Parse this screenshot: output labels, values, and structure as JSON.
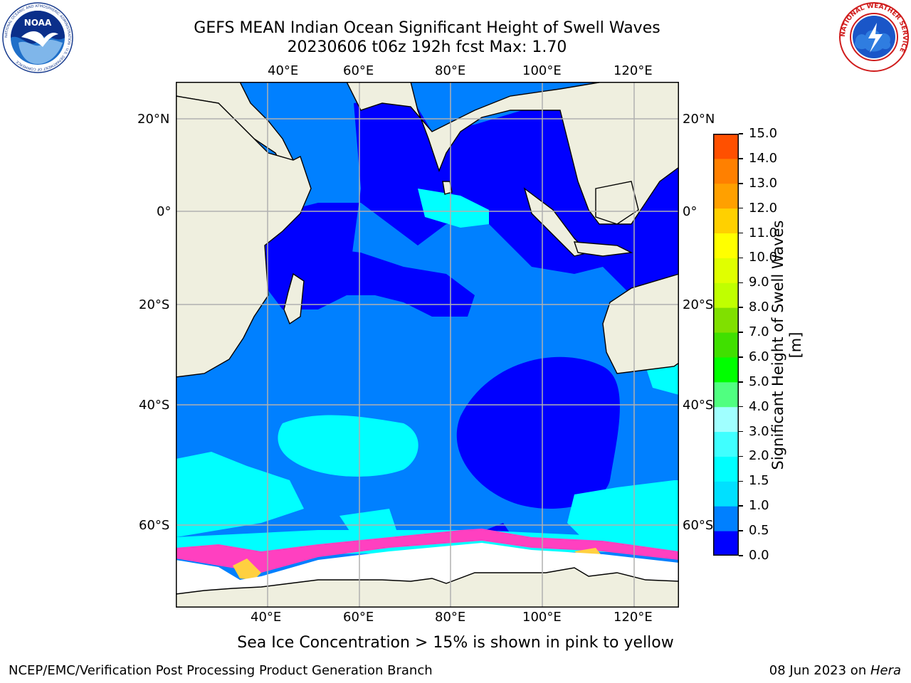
{
  "header": {
    "title_line1": "GEFS MEAN Indian Ocean Significant Height of Swell Waves",
    "title_line2": "20230606 t06z 192h fcst   Max: 1.70"
  },
  "logos": {
    "noaa_text": "NOAA",
    "noaa_ring_text": "NATIONAL OCEANIC AND ATMOSPHERIC ADMINISTRATION · U.S. DEPARTMENT OF COMMERCE",
    "nws_ring_text": "NATIONAL WEATHER SERVICE"
  },
  "map": {
    "lon_ticks": [
      "40°E",
      "60°E",
      "80°E",
      "100°E",
      "120°E"
    ],
    "lat_ticks": [
      "20°N",
      "0°",
      "20°S",
      "40°S",
      "60°S"
    ]
  },
  "colorbar": {
    "label": "Significant Height of Swell Waves [m]",
    "ticks": [
      "0.0",
      "0.5",
      "1.0",
      "1.5",
      "2.0",
      "3.0",
      "4.0",
      "5.0",
      "6.0",
      "7.0",
      "8.0",
      "9.0",
      "10.0",
      "11.0",
      "12.0",
      "13.0",
      "14.0",
      "15.0"
    ],
    "colors": [
      "#0000ff",
      "#0080ff",
      "#00e0ff",
      "#00ffff",
      "#40ffff",
      "#a0ffff",
      "#50ff80",
      "#00ff00",
      "#40e000",
      "#80e000",
      "#c0ff00",
      "#e0ff00",
      "#ffff00",
      "#ffd000",
      "#ffa000",
      "#ff8000",
      "#ff5000",
      "#ff2000",
      "#ff0000"
    ]
  },
  "caption": "Sea Ice Concentration > 15% is shown in pink to yellow",
  "footer": {
    "left": "NCEP/EMC/Verification Post Processing Product Generation Branch",
    "right_prefix": "08 Jun 2023 on ",
    "right_machine": "Hera"
  }
}
